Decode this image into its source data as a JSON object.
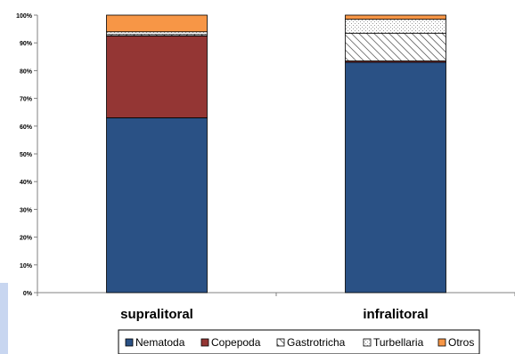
{
  "chart_data": {
    "type": "bar",
    "stacked": true,
    "percent": true,
    "categories": [
      "supralitoral",
      "infralitoral"
    ],
    "series": [
      {
        "name": "Nematoda",
        "values": [
          63,
          83
        ],
        "color": "#2a5185",
        "pattern": "solid"
      },
      {
        "name": "Copepoda",
        "values": [
          29.5,
          0.5
        ],
        "color": "#943634",
        "pattern": "solid"
      },
      {
        "name": "Gastrotricha",
        "values": [
          0.5,
          10
        ],
        "color": "#ffffff",
        "pattern": "diagonal-hatch"
      },
      {
        "name": "Turbellaria",
        "values": [
          1,
          5
        ],
        "color": "#ffffff",
        "pattern": "dots"
      },
      {
        "name": "Otros",
        "values": [
          6,
          1.5
        ],
        "color": "#f79646",
        "pattern": "solid"
      }
    ],
    "y_ticks": [
      "0%",
      "10%",
      "20%",
      "30%",
      "40%",
      "50%",
      "60%",
      "70%",
      "80%",
      "90%",
      "100%"
    ],
    "ylim": [
      0,
      100
    ],
    "grid": false,
    "legend_position": "bottom"
  }
}
